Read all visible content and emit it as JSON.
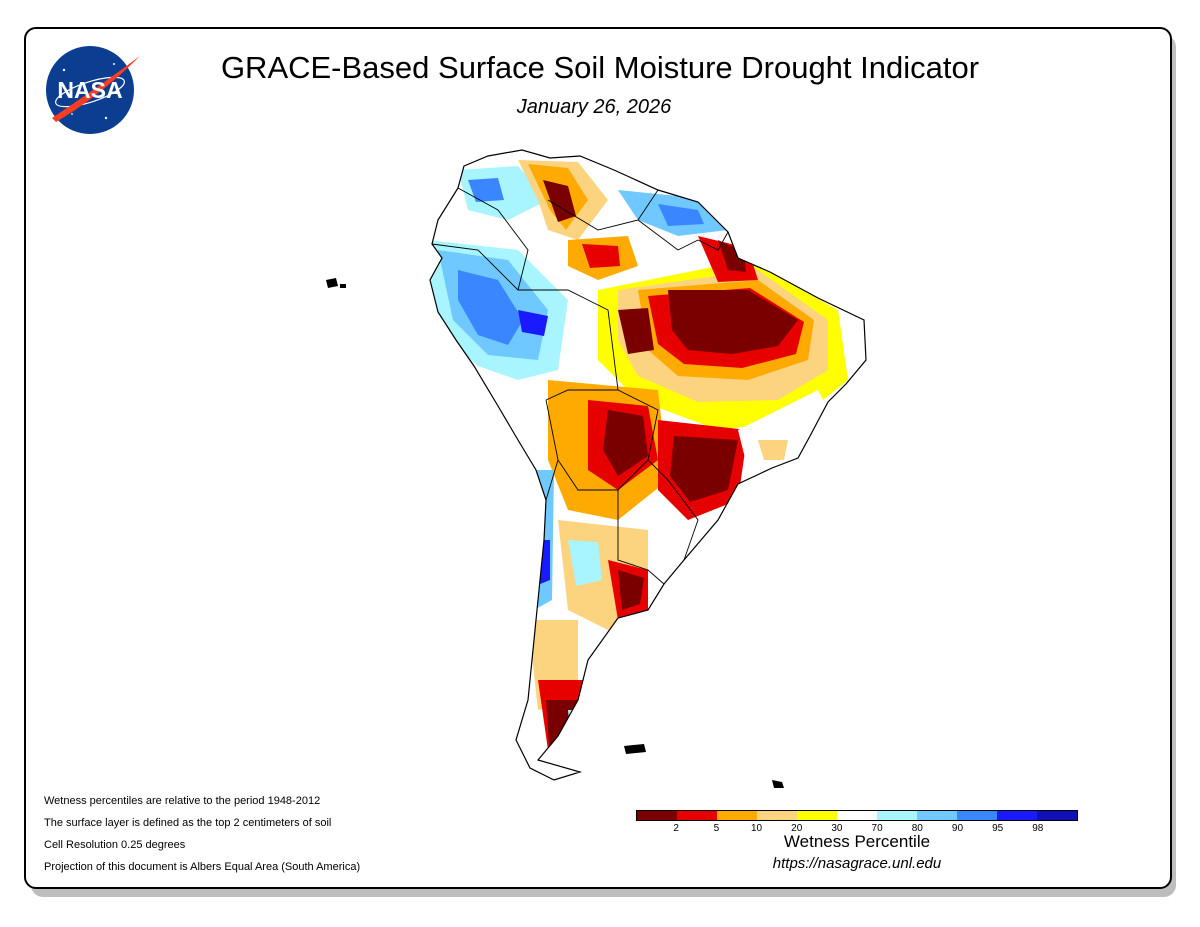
{
  "header": {
    "title": "GRACE-Based Surface Soil Moisture Drought Indicator",
    "date": "January 26, 2026",
    "logo_text": "NASA"
  },
  "notes": [
    "Wetness percentiles are relative to the period 1948-2012",
    "The surface layer is defined as the top 2 centimeters of soil",
    "Cell Resolution 0.25 degrees",
    "Projection of this document is Albers Equal Area (South America)"
  ],
  "legend": {
    "title": "Wetness Percentile",
    "url": "https://nasagrace.unl.edu",
    "ticks": [
      "2",
      "5",
      "10",
      "20",
      "30",
      "70",
      "80",
      "90",
      "95",
      "98"
    ],
    "colors": [
      "#7a0000",
      "#e60000",
      "#ffaa00",
      "#fcd37f",
      "#ffff00",
      "#ffffff",
      "#a8f5ff",
      "#6fc8ff",
      "#3a86ff",
      "#1a1aff",
      "#1010b4"
    ]
  },
  "map": {
    "region": "South America",
    "colors": {
      "dry_extreme": "#7a0000",
      "dry_severe": "#e60000",
      "dry_moderate": "#ffaa00",
      "dry_light": "#fcd37f",
      "abnormally_dry": "#ffff00",
      "normal": "#ffffff",
      "wet_light": "#a8f5ff",
      "wet_moderate": "#6fc8ff",
      "wet_high": "#3a86ff",
      "wet_very_high": "#1a1aff",
      "wet_extreme": "#1010b4"
    }
  }
}
